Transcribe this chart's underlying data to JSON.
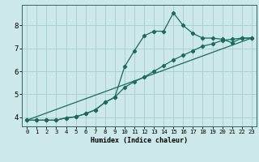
{
  "xlabel": "Humidex (Indice chaleur)",
  "background_color": "#cce8e8",
  "grid_color": "#aad0d0",
  "line_color": "#1a6b5a",
  "xlim": [
    -0.5,
    23.5
  ],
  "ylim": [
    3.6,
    8.9
  ],
  "x_ticks": [
    0,
    1,
    2,
    3,
    4,
    5,
    6,
    7,
    8,
    9,
    10,
    11,
    12,
    13,
    14,
    15,
    16,
    17,
    18,
    19,
    20,
    21,
    22,
    23
  ],
  "y_ticks": [
    4,
    5,
    6,
    7,
    8
  ],
  "series1_x": [
    0,
    1,
    2,
    3,
    4,
    5,
    6,
    7,
    8,
    9,
    10,
    11,
    12,
    13,
    14,
    15,
    16,
    17,
    18,
    19,
    20,
    21,
    22,
    23
  ],
  "series1_y": [
    3.87,
    3.87,
    3.87,
    3.87,
    3.97,
    4.02,
    4.15,
    4.32,
    4.65,
    4.87,
    6.2,
    6.9,
    7.55,
    7.75,
    7.75,
    8.55,
    8.0,
    7.65,
    7.45,
    7.45,
    7.4,
    7.25,
    7.45,
    7.45
  ],
  "series2_x": [
    0,
    1,
    2,
    3,
    4,
    5,
    6,
    7,
    8,
    9,
    10,
    11,
    12,
    13,
    14,
    15,
    16,
    17,
    18,
    19,
    20,
    21,
    22,
    23
  ],
  "series2_y": [
    3.87,
    3.87,
    3.87,
    3.87,
    3.97,
    4.02,
    4.15,
    4.32,
    4.65,
    4.87,
    5.3,
    5.55,
    5.75,
    6.0,
    6.25,
    6.5,
    6.7,
    6.9,
    7.1,
    7.2,
    7.35,
    7.4,
    7.45,
    7.45
  ],
  "series3_x": [
    0,
    23
  ],
  "series3_y": [
    3.87,
    7.45
  ]
}
